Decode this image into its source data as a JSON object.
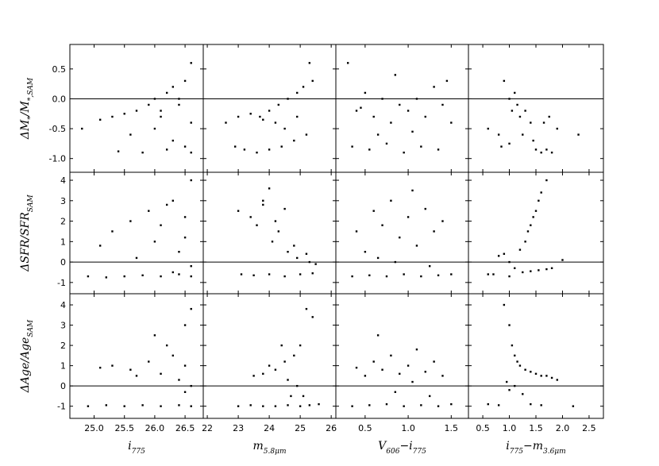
{
  "chart_data": {
    "type": "scatter",
    "color": "#000000",
    "hline": 0,
    "columns": [
      {
        "xlabel": [
          {
            "text": "i",
            "sub": "775"
          }
        ],
        "xlim": [
          24.6,
          26.8
        ],
        "xticks": [
          {
            "value": 25,
            "label": "25.0"
          },
          25.5,
          {
            "value": 26,
            "label": "26.0"
          },
          26.5
        ]
      },
      {
        "xlabel": [
          {
            "text": "m",
            "sub": "5.8μm"
          }
        ],
        "xlim": [
          21.87,
          26.15
        ],
        "xticks": [
          22,
          23,
          24,
          25,
          26
        ]
      },
      {
        "xlabel": [
          {
            "text": "V",
            "sub": "606"
          },
          {
            "text": "−i",
            "sub": "775"
          }
        ],
        "xlim": [
          0.16,
          1.7
        ],
        "xticks": [
          0.5,
          {
            "value": 1,
            "label": "1.0"
          },
          1.5
        ]
      },
      {
        "xlabel": [
          {
            "text": "i",
            "sub": "775"
          },
          {
            "text": "−m",
            "sub": "3.6μm"
          }
        ],
        "xlim": [
          0.23,
          2.77
        ],
        "xticks": [
          0.5,
          {
            "value": 1,
            "label": "1.0"
          },
          1.5,
          {
            "value": 2,
            "label": "2.0"
          },
          2.5
        ]
      }
    ],
    "rows": [
      {
        "ylabel": [
          {
            "text": "ΔM",
            "sub": "*"
          },
          {
            "text": "/M",
            "sub": "*,SAM"
          }
        ],
        "ylim": [
          -1.23,
          0.91
        ],
        "yticks": [
          0.5,
          {
            "value": 0,
            "label": "0.0"
          },
          {
            "value": -0.5,
            "label": "-0.5"
          },
          {
            "value": -1,
            "label": "-1.0"
          }
        ]
      },
      {
        "ylabel": [
          {
            "text": "ΔSFR/SFR",
            "sub": "SAM"
          }
        ],
        "ylim": [
          -1.55,
          4.39
        ],
        "yticks": [
          -1,
          0,
          1,
          2,
          3,
          4
        ]
      },
      {
        "ylabel": [
          {
            "text": "ΔAge/Age",
            "sub": "SAM"
          }
        ],
        "ylim": [
          -1.6,
          4.55
        ],
        "yticks": [
          -1,
          0,
          1,
          2,
          3,
          4
        ]
      }
    ],
    "panels": [
      [
        {
          "x": [
            24.8,
            25.1,
            25.3,
            25.5,
            25.7,
            25.9,
            26.0,
            26.1,
            26.2,
            26.3,
            26.4,
            26.5,
            26.6,
            26.6,
            25.4,
            25.8,
            26.2,
            26.5,
            25.6,
            26.0,
            26.3,
            26.6,
            26.4,
            26.1
          ],
          "y": [
            -0.5,
            -0.35,
            -0.3,
            -0.25,
            -0.2,
            -0.1,
            0.0,
            -0.2,
            0.1,
            0.2,
            -0.1,
            0.3,
            0.6,
            -0.4,
            -0.88,
            -0.9,
            -0.85,
            -0.8,
            -0.6,
            -0.5,
            -0.7,
            -0.9,
            0.0,
            -0.3
          ]
        },
        {
          "x": [
            22.6,
            23.0,
            23.4,
            23.7,
            24.0,
            24.3,
            24.6,
            24.9,
            25.1,
            25.3,
            23.2,
            23.6,
            24.0,
            24.4,
            24.8,
            25.2,
            24.5,
            24.9,
            23.8,
            24.2,
            25.4,
            22.9
          ],
          "y": [
            -0.4,
            -0.3,
            -0.25,
            -0.3,
            -0.2,
            -0.1,
            0.0,
            0.1,
            0.2,
            0.6,
            -0.85,
            -0.9,
            -0.85,
            -0.8,
            -0.7,
            -0.6,
            -0.5,
            -0.3,
            -0.35,
            -0.4,
            0.3,
            -0.8
          ]
        },
        {
          "x": [
            0.3,
            0.4,
            0.5,
            0.6,
            0.7,
            0.8,
            0.9,
            1.0,
            1.1,
            1.2,
            1.3,
            1.4,
            1.5,
            0.35,
            0.55,
            0.75,
            0.95,
            1.15,
            1.35,
            0.65,
            1.05,
            1.45,
            0.45,
            0.85
          ],
          "y": [
            0.6,
            -0.2,
            0.1,
            -0.3,
            0.0,
            -0.4,
            -0.1,
            -0.2,
            0.0,
            -0.3,
            0.2,
            -0.1,
            -0.4,
            -0.8,
            -0.85,
            -0.75,
            -0.9,
            -0.8,
            -0.85,
            -0.6,
            -0.55,
            0.3,
            -0.15,
            0.4
          ]
        },
        {
          "x": [
            0.6,
            0.8,
            0.9,
            1.0,
            1.05,
            1.1,
            1.15,
            1.2,
            1.3,
            1.4,
            1.5,
            1.6,
            1.7,
            1.8,
            0.85,
            1.0,
            1.25,
            1.45,
            1.65,
            1.75,
            1.9,
            2.3
          ],
          "y": [
            -0.5,
            -0.6,
            0.3,
            0.0,
            -0.2,
            0.1,
            -0.1,
            -0.3,
            -0.2,
            -0.4,
            -0.85,
            -0.9,
            -0.85,
            -0.9,
            -0.8,
            -0.75,
            -0.6,
            -0.7,
            -0.4,
            -0.3,
            -0.5,
            -0.6
          ]
        }
      ],
      [
        {
          "x": [
            24.9,
            25.2,
            25.5,
            25.8,
            26.1,
            26.4,
            26.6,
            25.6,
            25.9,
            26.1,
            26.3,
            26.5,
            26.6,
            26.0,
            26.4,
            25.3,
            25.7,
            26.2,
            26.5,
            26.6,
            25.1,
            26.3
          ],
          "y": [
            -0.7,
            -0.75,
            -0.7,
            -0.65,
            -0.7,
            -0.6,
            -0.7,
            2.0,
            2.5,
            1.8,
            3.0,
            2.2,
            4.0,
            1.0,
            0.5,
            1.5,
            0.2,
            2.8,
            1.2,
            -0.2,
            0.8,
            -0.5
          ]
        },
        {
          "x": [
            23.0,
            23.4,
            23.8,
            24.2,
            24.5,
            23.6,
            24.0,
            24.3,
            24.6,
            24.9,
            25.2,
            25.5,
            23.1,
            23.5,
            24.0,
            24.5,
            25.0,
            25.4,
            24.1,
            23.8,
            24.8,
            25.3
          ],
          "y": [
            2.5,
            2.2,
            3.0,
            2.0,
            2.6,
            1.8,
            3.6,
            1.5,
            0.5,
            0.2,
            0.4,
            -0.1,
            -0.6,
            -0.65,
            -0.6,
            -0.7,
            -0.6,
            -0.55,
            1.0,
            2.8,
            0.8,
            0.0
          ]
        },
        {
          "x": [
            0.4,
            0.5,
            0.6,
            0.7,
            0.8,
            0.9,
            1.0,
            1.1,
            1.2,
            1.3,
            1.4,
            0.35,
            0.55,
            0.75,
            0.95,
            1.15,
            1.35,
            1.5,
            0.65,
            1.05,
            1.25,
            0.85
          ],
          "y": [
            1.5,
            0.5,
            2.5,
            1.8,
            3.0,
            1.2,
            2.2,
            0.8,
            2.6,
            1.5,
            2.0,
            -0.7,
            -0.65,
            -0.7,
            -0.6,
            -0.7,
            -0.65,
            -0.6,
            0.2,
            3.5,
            -0.2,
            0.0
          ]
        },
        {
          "x": [
            0.6,
            0.8,
            0.9,
            1.0,
            1.1,
            1.2,
            1.3,
            1.35,
            1.4,
            1.45,
            1.5,
            1.55,
            1.6,
            1.7,
            1.25,
            1.4,
            1.55,
            1.7,
            1.8,
            1.0,
            2.0,
            0.7
          ],
          "y": [
            -0.6,
            0.3,
            0.4,
            0.0,
            -0.3,
            0.6,
            1.0,
            1.5,
            1.8,
            2.2,
            2.5,
            3.0,
            3.4,
            4.0,
            -0.5,
            -0.45,
            -0.4,
            -0.35,
            -0.3,
            -0.7,
            0.1,
            -0.6
          ]
        }
      ],
      [
        {
          "x": [
            24.9,
            25.2,
            25.5,
            25.8,
            26.1,
            26.4,
            26.6,
            25.6,
            25.9,
            26.1,
            26.3,
            26.5,
            26.6,
            26.0,
            26.4,
            25.3,
            25.1,
            26.2,
            26.5,
            26.6,
            25.7,
            26.5
          ],
          "y": [
            -1.0,
            -0.95,
            -1.0,
            -0.95,
            -1.0,
            -0.95,
            -1.0,
            0.8,
            1.2,
            0.6,
            1.5,
            1.0,
            3.8,
            2.5,
            0.3,
            1.0,
            0.9,
            2.0,
            -0.3,
            0.0,
            0.5,
            3.0
          ]
        },
        {
          "x": [
            23.0,
            23.4,
            23.8,
            24.2,
            24.6,
            25.0,
            25.3,
            23.8,
            24.2,
            24.5,
            24.8,
            25.0,
            25.2,
            24.0,
            24.6,
            25.4,
            24.9,
            23.5,
            24.4,
            25.1,
            25.6,
            24.7
          ],
          "y": [
            -1.0,
            -0.95,
            -1.0,
            -1.0,
            -0.95,
            -1.0,
            -0.95,
            0.6,
            0.8,
            1.2,
            1.5,
            2.0,
            3.8,
            1.0,
            0.3,
            3.4,
            0.0,
            0.5,
            2.0,
            -0.5,
            -0.9,
            -0.5
          ]
        },
        {
          "x": [
            0.4,
            0.5,
            0.6,
            0.7,
            0.8,
            0.9,
            1.0,
            1.1,
            1.2,
            1.3,
            1.4,
            0.35,
            0.55,
            0.75,
            0.95,
            1.15,
            1.35,
            1.5,
            0.65,
            1.05,
            1.25,
            0.85
          ],
          "y": [
            0.9,
            0.5,
            1.2,
            0.8,
            1.5,
            0.6,
            1.0,
            1.8,
            0.7,
            1.2,
            0.5,
            -1.0,
            -0.95,
            -0.9,
            -1.0,
            -0.95,
            -1.0,
            -0.9,
            2.5,
            0.2,
            -0.5,
            -0.3
          ]
        },
        {
          "x": [
            0.6,
            0.8,
            0.9,
            1.0,
            1.05,
            1.1,
            1.15,
            1.2,
            1.3,
            1.4,
            1.5,
            1.6,
            1.7,
            1.8,
            1.0,
            1.1,
            1.25,
            1.4,
            1.6,
            0.95,
            2.2,
            1.9
          ],
          "y": [
            -0.9,
            -0.95,
            4.0,
            3.0,
            2.0,
            1.5,
            1.2,
            1.0,
            0.8,
            0.7,
            0.6,
            0.5,
            0.5,
            0.4,
            -0.2,
            0.0,
            -0.4,
            -0.9,
            -0.95,
            0.2,
            -1.0,
            0.3
          ]
        }
      ]
    ]
  }
}
